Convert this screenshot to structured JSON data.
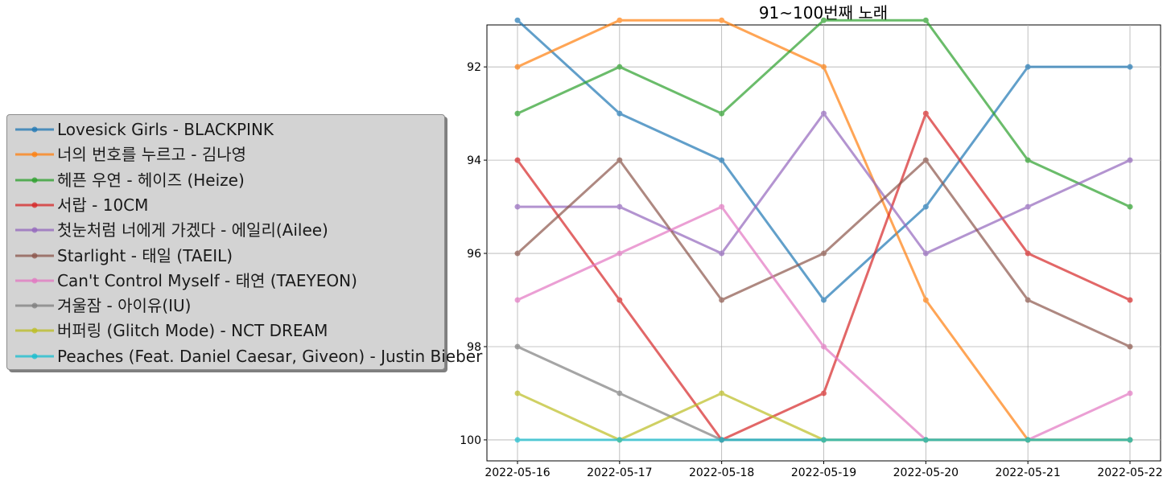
{
  "chart_data": {
    "type": "line",
    "title": "91~100번째 노래",
    "xlabel": "",
    "ylabel": "",
    "x": [
      "2022-05-16",
      "2022-05-17",
      "2022-05-18",
      "2022-05-19",
      "2022-05-20",
      "2022-05-21",
      "2022-05-22"
    ],
    "yticks": [
      92,
      94,
      96,
      98,
      100
    ],
    "ylim": [
      91.1,
      100.45
    ],
    "y_inverted": true,
    "grid": true,
    "legend_position": "left",
    "series": [
      {
        "name": "Lovesick Girls - BLACKPINK",
        "color": "#1f77b4",
        "values": [
          91,
          93,
          94,
          97,
          95,
          92,
          92
        ]
      },
      {
        "name": "너의 번호를 누르고 - 김나영",
        "color": "#ff7f0e",
        "values": [
          92,
          91,
          91,
          92,
          97,
          100,
          100
        ]
      },
      {
        "name": "헤픈 우연 - 헤이즈 (Heize)",
        "color": "#2ca02c",
        "values": [
          93,
          92,
          93,
          91,
          91,
          94,
          95
        ]
      },
      {
        "name": "서랍 - 10CM",
        "color": "#d62728",
        "values": [
          94,
          97,
          100,
          99,
          93,
          96,
          97
        ]
      },
      {
        "name": "첫눈처럼 너에게 가겠다 - 에일리(Ailee)",
        "color": "#9467bd",
        "values": [
          95,
          95,
          96,
          93,
          96,
          95,
          94
        ]
      },
      {
        "name": "Starlight - 태일 (TAEIL)",
        "color": "#8c564b",
        "values": [
          96,
          94,
          97,
          96,
          94,
          97,
          98
        ]
      },
      {
        "name": "Can't Control Myself - 태연 (TAEYEON)",
        "color": "#e377c2",
        "values": [
          97,
          96,
          95,
          98,
          100,
          100,
          99
        ]
      },
      {
        "name": "겨울잠 - 아이유(IU)",
        "color": "#7f7f7f",
        "values": [
          98,
          99,
          100,
          100,
          100,
          100,
          100
        ]
      },
      {
        "name": "버퍼링 (Glitch Mode) - NCT DREAM",
        "color": "#bcbd22",
        "values": [
          99,
          100,
          99,
          100,
          100,
          100,
          100
        ]
      },
      {
        "name": "Peaches (Feat. Daniel Caesar, Giveon) - Justin Bieber",
        "color": "#17becf",
        "values": [
          100,
          100,
          100,
          100,
          100,
          100,
          100
        ]
      }
    ]
  }
}
